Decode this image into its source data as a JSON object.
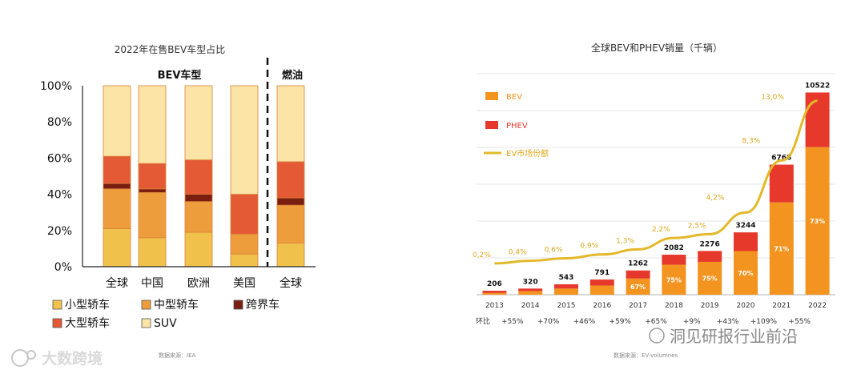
{
  "chart_data": [
    {
      "type": "bar",
      "stacked": true,
      "title": "2022年在售BEV车型占比",
      "group_labels": [
        "BEV车型",
        "燃油"
      ],
      "categories": [
        "全球",
        "中国",
        "欧洲",
        "美国",
        "全球"
      ],
      "y_ticks": [
        "0%",
        "20%",
        "40%",
        "60%",
        "80%",
        "100%"
      ],
      "ylim": [
        0,
        100
      ],
      "series": [
        {
          "name": "小型轿车",
          "color": "#f0c24c",
          "values": [
            21,
            16,
            19,
            7,
            13
          ]
        },
        {
          "name": "中型轿车",
          "color": "#ee9d3d",
          "values": [
            22,
            25,
            17,
            11,
            21
          ]
        },
        {
          "name": "跨界车",
          "color": "#7a1e12",
          "values": [
            3,
            2,
            4,
            0,
            4
          ]
        },
        {
          "name": "大型轿车",
          "color": "#e45a35",
          "values": [
            15,
            14,
            19,
            22,
            20
          ]
        },
        {
          "name": "SUV",
          "color": "#fbe4a6",
          "values": [
            39,
            43,
            41,
            60,
            42
          ]
        }
      ],
      "legend": [
        "小型轿车",
        "中型轿车",
        "跨界车",
        "大型轿车",
        "SUV"
      ],
      "source": "数据来源：IEA"
    },
    {
      "type": "bar",
      "stacked": true,
      "title": "全球BEV和PHEV销量（千辆）",
      "categories": [
        "2013",
        "2014",
        "2015",
        "2016",
        "2017",
        "2018",
        "2019",
        "2020",
        "2021",
        "2022"
      ],
      "ylim": [
        0,
        11500
      ],
      "series": [
        {
          "name": "BEV",
          "color": "#f39420",
          "values": [
            90,
            190,
            320,
            480,
            845,
            1560,
            1710,
            2270,
            4805,
            7680
          ]
        },
        {
          "name": "PHEV",
          "color": "#e6392b",
          "values": [
            116,
            130,
            223,
            311,
            417,
            522,
            566,
            974,
            1963,
            2842
          ]
        }
      ],
      "totals": [
        "206",
        "320",
        "543",
        "791",
        "1262",
        "2082",
        "2276",
        "3244",
        "6768",
        "10522"
      ],
      "bev_share_labels": [
        "",
        "",
        "",
        "",
        "67%",
        "75%",
        "75%",
        "70%",
        "71%",
        "73%"
      ],
      "line": {
        "name": "EV市场份额",
        "color": "#e3b92a",
        "values": [
          0.2,
          0.4,
          0.6,
          0.9,
          1.3,
          2.2,
          2.5,
          4.2,
          8.3,
          13.0
        ],
        "labels": [
          "0,2%",
          "0,4%",
          "0,6%",
          "0,9%",
          "1,3%",
          "2,2%",
          "2,5%",
          "4,2%",
          "8,3%",
          "13,0%"
        ]
      },
      "growth_row_label": "环比",
      "growth": [
        "+55%",
        "+70%",
        "+46%",
        "+59%",
        "+65%",
        "+9%",
        "+43%",
        "+109%",
        "+55%"
      ],
      "legend": [
        "BEV",
        "PHEV",
        "EV市场份额"
      ],
      "source": "数据来源：EV-volumnes"
    }
  ],
  "watermarks": {
    "left": "大数跨境",
    "right": "洞见研报行业前沿"
  }
}
